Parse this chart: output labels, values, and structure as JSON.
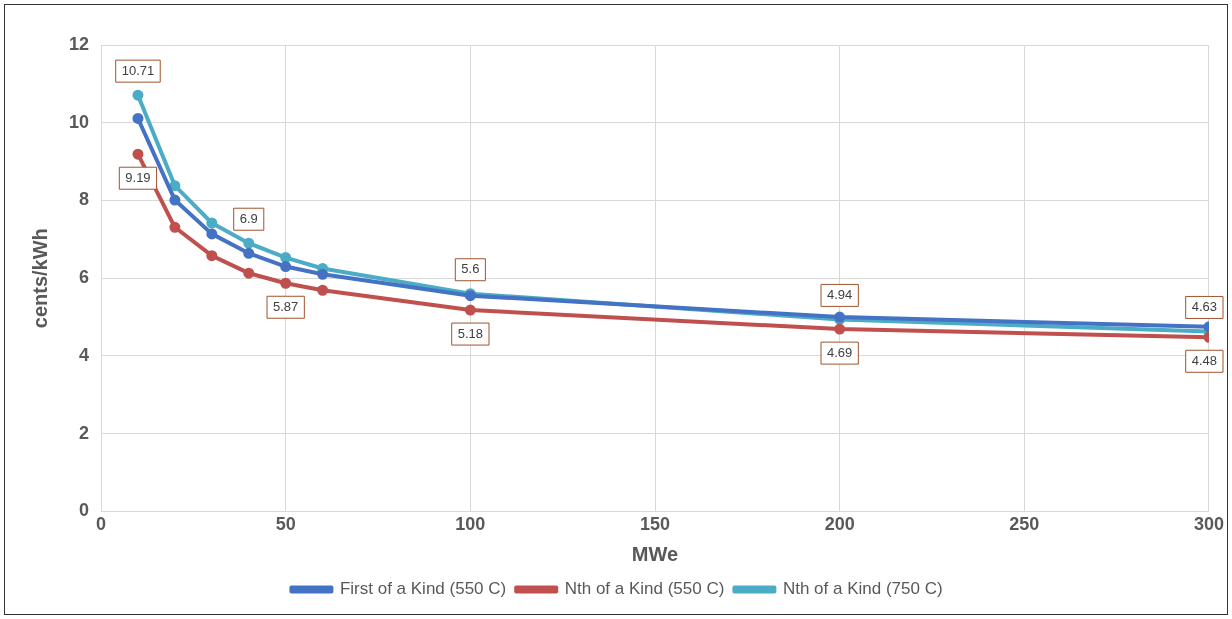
{
  "chart_data": {
    "type": "line",
    "xlabel": "MWe",
    "ylabel": "cents/kWh",
    "x": [
      10,
      20,
      30,
      40,
      50,
      60,
      100,
      200,
      300
    ],
    "series": [
      {
        "name": "First of a Kind (550 C)",
        "color": "#4472c4",
        "values": [
          10.11,
          8.01,
          7.14,
          6.64,
          6.3,
          6.1,
          5.55,
          5.0,
          4.75
        ]
      },
      {
        "name": "Nth of a Kind (550 C)",
        "color": "#c0504d",
        "values": [
          9.19,
          7.31,
          6.58,
          6.13,
          5.87,
          5.69,
          5.18,
          4.69,
          4.48
        ],
        "value_labels": [
          "9.19",
          null,
          null,
          null,
          "5.87",
          null,
          "5.18",
          "4.69",
          "4.48"
        ]
      },
      {
        "name": "Nth of a Kind (750 C)",
        "color": "#4bacc6",
        "values": [
          10.71,
          8.38,
          7.42,
          6.9,
          6.53,
          6.25,
          5.6,
          4.94,
          4.63
        ],
        "value_labels": [
          "10.71",
          null,
          null,
          "6.9",
          null,
          null,
          "5.6",
          "4.94",
          "4.63"
        ]
      }
    ],
    "xlim": [
      0,
      300
    ],
    "xticks": [
      0,
      50,
      100,
      150,
      200,
      250,
      300
    ],
    "ylim": [
      0,
      12
    ],
    "yticks": [
      0,
      2,
      4,
      6,
      8,
      10,
      12
    ],
    "grid": true,
    "legend": "bottom",
    "marker": "circle",
    "line_style": "solid"
  }
}
